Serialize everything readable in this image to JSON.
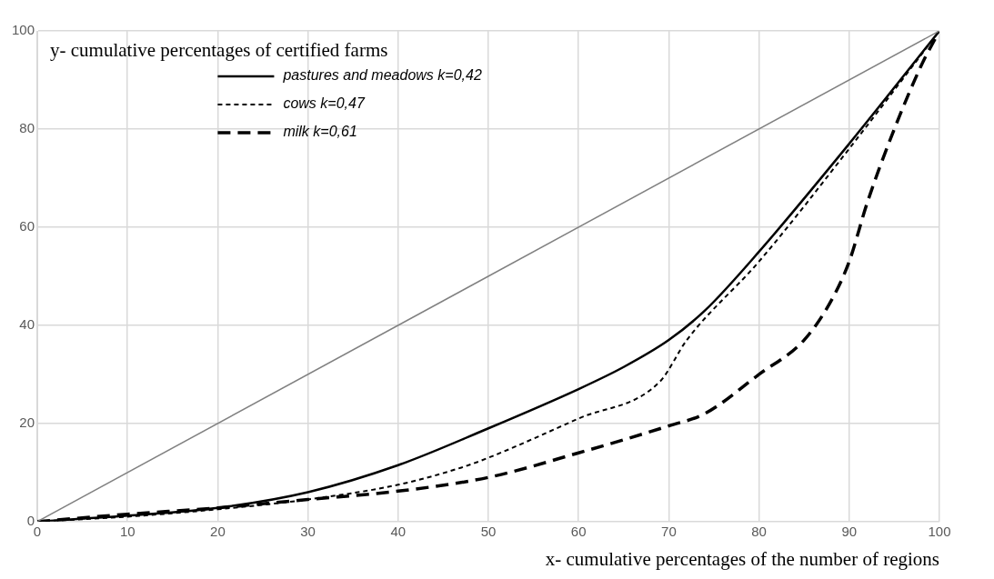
{
  "chart_data": {
    "type": "line",
    "xlabel": "x- cumulative percentages of the number of regions",
    "ylabel": "y- cumulative percentages of certified farms",
    "xlim": [
      0,
      100
    ],
    "xticks": [
      0,
      10,
      20,
      30,
      40,
      50,
      60,
      70,
      80,
      90,
      100
    ],
    "ylim": [
      0,
      100
    ],
    "yticks": [
      0,
      20,
      40,
      60,
      80,
      100
    ],
    "grid": true,
    "legend": "left",
    "marker": "none",
    "series": [
      {
        "color": "#808080",
        "line_style": "solid",
        "x": [
          0,
          100
        ],
        "values": [
          0,
          100
        ]
      },
      {
        "name": "pastures and meadows k=0,42",
        "color": "#000000",
        "line_style": "solid",
        "x": [
          0,
          10,
          20,
          30,
          40,
          50,
          60,
          65,
          70,
          74,
          80,
          90,
          100
        ],
        "values": [
          0,
          1.2,
          2.8,
          6,
          11.5,
          19,
          27,
          31.5,
          37,
          43,
          55,
          77,
          100
        ]
      },
      {
        "name": "cows k=0,47",
        "color": "#000000",
        "line_style": "dotted",
        "x": [
          0,
          10,
          20,
          30,
          40,
          47,
          50,
          60,
          69,
          72,
          80,
          90,
          100
        ],
        "values": [
          0,
          1,
          2.5,
          4.5,
          7.5,
          11,
          13,
          21,
          28.5,
          37,
          53,
          76,
          100
        ]
      },
      {
        "name": "milk k=0,61",
        "color": "#000000",
        "line_style": "dashed",
        "x": [
          0,
          10,
          20,
          30,
          40,
          50,
          60,
          70,
          74,
          80,
          85,
          88,
          90,
          92,
          95,
          98,
          100
        ],
        "values": [
          0,
          1.5,
          2.8,
          4.5,
          6.2,
          9,
          14,
          19.5,
          22,
          30,
          37,
          45,
          53,
          65,
          80,
          93,
          100
        ]
      }
    ]
  }
}
